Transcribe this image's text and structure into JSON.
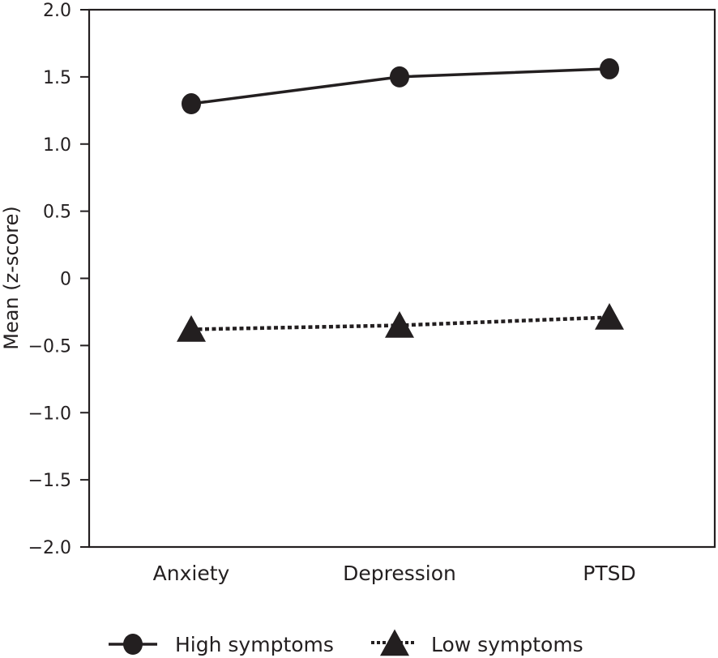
{
  "chart_data": {
    "type": "line",
    "title": "",
    "xlabel": "",
    "ylabel": "Mean (z-score)",
    "categories": [
      "Anxiety",
      "Depression",
      "PTSD"
    ],
    "ylim": [
      -2.0,
      2.0
    ],
    "yticks": [
      2.0,
      1.5,
      1.0,
      0.5,
      0,
      -0.5,
      -1.0,
      -1.5,
      -2.0
    ],
    "ytick_labels": [
      "2.0",
      "1.5",
      "1.0",
      "0.5",
      "0",
      "−0.5",
      "−1.0",
      "−1.5",
      "−2.0"
    ],
    "grid": false,
    "legend_position": "bottom",
    "series": [
      {
        "name": "High symptoms",
        "marker": "circle",
        "line_style": "solid",
        "color": "#231f20",
        "values": [
          1.3,
          1.5,
          1.56
        ]
      },
      {
        "name": "Low symptoms",
        "marker": "triangle",
        "line_style": "dotted",
        "color": "#231f20",
        "values": [
          -0.38,
          -0.35,
          -0.29
        ]
      }
    ]
  }
}
